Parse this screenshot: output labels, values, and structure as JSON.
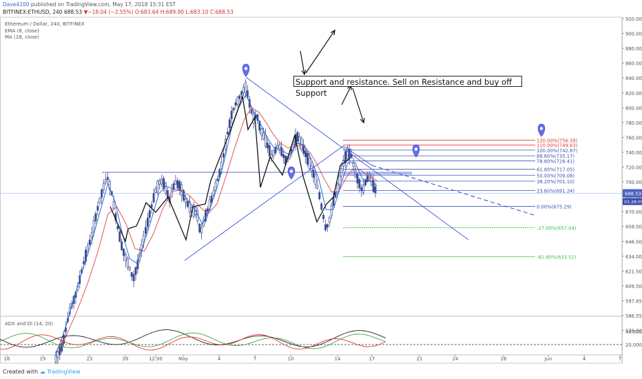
{
  "header": {
    "publisher": "Dave4200",
    "publish_text": "published on TradingView.com, May 17, 2018 15:31 EST",
    "symbol": "BITFINEX:ETHUSD, 240",
    "last": "688.53",
    "change": "▼−18.04 (−2.55%)",
    "ohlc": "O:683.64 H:689.90 L:683.10 C:688.53"
  },
  "legend": {
    "title": "Ethereum / Dollar, 240, BITFINEX",
    "ema": "EMA (8, close)",
    "ma": "MA (18, close)"
  },
  "annotation": "Support and resistance. Sell on Resistance and buy off Support",
  "adx": {
    "label": "ADX and DI (14, 20)",
    "ticks": [
      "40.0000",
      "20.0000"
    ]
  },
  "footer": {
    "created_with": "Created with",
    "brand": "TradingView"
  },
  "colors": {
    "trend_line": "#3f51d8",
    "ema": "#2a6bd6",
    "ma": "#e05555",
    "fib_red": "#e53935",
    "fib_blue": "#3f51b5",
    "fib_green": "#43c243",
    "marker": "#6a6ee8",
    "candle_fill": "#3b4a8f"
  },
  "chart_data": {
    "type": "candlestick",
    "title": "Ethereum / Dollar, 240, BITFINEX",
    "y_axis": {
      "ticks": [
        "920.00",
        "900.00",
        "880.00",
        "860.00",
        "840.00",
        "820.00",
        "800.00",
        "780.00",
        "760.00",
        "740.00",
        "720.00",
        "700.00",
        "685.00",
        "670.00",
        "658.00",
        "646.00",
        "634.00",
        "621.50",
        "609.50",
        "597.85",
        "586.55",
        "576.00"
      ],
      "price_label": "688.53",
      "time_label": "03:28:05"
    },
    "x_axis": {
      "ticks": [
        "16",
        "19",
        "23",
        "26",
        "12:00",
        "May",
        "4",
        "7",
        "10",
        "14",
        "17",
        "21",
        "24",
        "28",
        "Jun",
        "4",
        "7"
      ]
    },
    "fib_levels": [
      {
        "label": "120.00%(756.39)",
        "value": 756.39,
        "group": "red"
      },
      {
        "label": "110.00%(749.63)",
        "value": 749.63,
        "group": "red"
      },
      {
        "label": "100.00%(742.87)",
        "value": 742.87,
        "group": "blue"
      },
      {
        "label": "88.60%(735.17)",
        "value": 735.17,
        "group": "blue"
      },
      {
        "label": "78.60%(728.41)",
        "value": 728.41,
        "group": "blue"
      },
      {
        "label": "61.80%(717.05)",
        "value": 717.05,
        "group": "blue"
      },
      {
        "label": "50.00%(709.08)",
        "value": 709.08,
        "group": "blue"
      },
      {
        "label": "38.20%(701.10)",
        "value": 701.1,
        "group": "blue"
      },
      {
        "label": "23.60%(691.24)",
        "value": 691.24,
        "group": "blue"
      },
      {
        "label": "0.00%(675.29)",
        "value": 675.29,
        "group": "blue"
      },
      {
        "label": "-27.00%(657.04)",
        "value": 657.04,
        "group": "green"
      },
      {
        "label": "-61.80%(633.52)",
        "value": 633.52,
        "group": "green"
      }
    ],
    "price_path": [
      [
        0,
        555
      ],
      [
        8,
        565
      ],
      [
        16,
        590
      ],
      [
        24,
        605
      ],
      [
        32,
        630
      ],
      [
        40,
        650
      ],
      [
        48,
        678
      ],
      [
        55,
        700
      ],
      [
        58,
        705
      ],
      [
        62,
        690
      ],
      [
        68,
        660
      ],
      [
        74,
        640
      ],
      [
        80,
        628
      ],
      [
        86,
        615
      ],
      [
        92,
        630
      ],
      [
        98,
        650
      ],
      [
        104,
        668
      ],
      [
        110,
        690
      ],
      [
        116,
        702
      ],
      [
        120,
        698
      ],
      [
        126,
        682
      ],
      [
        132,
        700
      ],
      [
        138,
        695
      ],
      [
        144,
        680
      ],
      [
        150,
        672
      ],
      [
        156,
        670
      ],
      [
        160,
        652
      ],
      [
        166,
        668
      ],
      [
        172,
        682
      ],
      [
        178,
        700
      ],
      [
        182,
        716
      ],
      [
        186,
        740
      ],
      [
        190,
        768
      ],
      [
        194,
        790
      ],
      [
        198,
        804
      ],
      [
        202,
        812
      ],
      [
        206,
        822
      ],
      [
        210,
        828
      ],
      [
        214,
        805
      ],
      [
        218,
        785
      ],
      [
        222,
        790
      ],
      [
        226,
        770
      ],
      [
        230,
        760
      ],
      [
        234,
        748
      ],
      [
        238,
        735
      ],
      [
        242,
        742
      ],
      [
        246,
        750
      ],
      [
        250,
        738
      ],
      [
        254,
        728
      ],
      [
        258,
        735
      ],
      [
        262,
        748
      ],
      [
        266,
        762
      ],
      [
        270,
        754
      ],
      [
        274,
        742
      ],
      [
        278,
        730
      ],
      [
        282,
        718
      ],
      [
        286,
        705
      ],
      [
        290,
        690
      ],
      [
        294,
        670
      ],
      [
        298,
        655
      ],
      [
        302,
        664
      ],
      [
        306,
        680
      ],
      [
        310,
        692
      ],
      [
        314,
        708
      ],
      [
        318,
        730
      ],
      [
        322,
        740
      ],
      [
        326,
        735
      ],
      [
        330,
        712
      ],
      [
        334,
        700
      ],
      [
        338,
        690
      ],
      [
        342,
        702
      ],
      [
        346,
        708
      ],
      [
        350,
        696
      ],
      [
        354,
        689
      ]
    ],
    "ema_8": [
      [
        0,
        558
      ],
      [
        10,
        575
      ],
      [
        20,
        598
      ],
      [
        30,
        622
      ],
      [
        40,
        645
      ],
      [
        50,
        672
      ],
      [
        58,
        698
      ],
      [
        66,
        680
      ],
      [
        74,
        652
      ],
      [
        82,
        632
      ],
      [
        90,
        628
      ],
      [
        98,
        645
      ],
      [
        106,
        664
      ],
      [
        114,
        688
      ],
      [
        122,
        696
      ],
      [
        130,
        693
      ],
      [
        138,
        692
      ],
      [
        146,
        682
      ],
      [
        154,
        672
      ],
      [
        162,
        660
      ],
      [
        170,
        672
      ],
      [
        178,
        694
      ],
      [
        186,
        728
      ],
      [
        194,
        772
      ],
      [
        202,
        800
      ],
      [
        210,
        818
      ],
      [
        218,
        796
      ],
      [
        226,
        778
      ],
      [
        234,
        758
      ],
      [
        242,
        744
      ],
      [
        250,
        742
      ],
      [
        258,
        736
      ],
      [
        266,
        752
      ],
      [
        274,
        750
      ],
      [
        282,
        730
      ],
      [
        290,
        704
      ],
      [
        298,
        672
      ],
      [
        306,
        672
      ],
      [
        314,
        696
      ],
      [
        322,
        726
      ],
      [
        330,
        726
      ],
      [
        338,
        704
      ],
      [
        346,
        702
      ],
      [
        354,
        696
      ]
    ],
    "ma_18": [
      [
        0,
        560
      ],
      [
        12,
        572
      ],
      [
        24,
        590
      ],
      [
        36,
        612
      ],
      [
        48,
        640
      ],
      [
        58,
        668
      ],
      [
        68,
        675
      ],
      [
        78,
        660
      ],
      [
        88,
        640
      ],
      [
        98,
        638
      ],
      [
        108,
        652
      ],
      [
        118,
        672
      ],
      [
        128,
        690
      ],
      [
        138,
        692
      ],
      [
        148,
        686
      ],
      [
        158,
        676
      ],
      [
        168,
        668
      ],
      [
        178,
        678
      ],
      [
        188,
        708
      ],
      [
        198,
        748
      ],
      [
        208,
        784
      ],
      [
        216,
        800
      ],
      [
        224,
        794
      ],
      [
        232,
        780
      ],
      [
        240,
        764
      ],
      [
        248,
        752
      ],
      [
        256,
        746
      ],
      [
        264,
        748
      ],
      [
        272,
        750
      ],
      [
        280,
        740
      ],
      [
        288,
        724
      ],
      [
        296,
        704
      ],
      [
        304,
        690
      ],
      [
        312,
        690
      ],
      [
        320,
        706
      ],
      [
        328,
        718
      ],
      [
        336,
        716
      ],
      [
        344,
        708
      ],
      [
        354,
        702
      ]
    ]
  }
}
